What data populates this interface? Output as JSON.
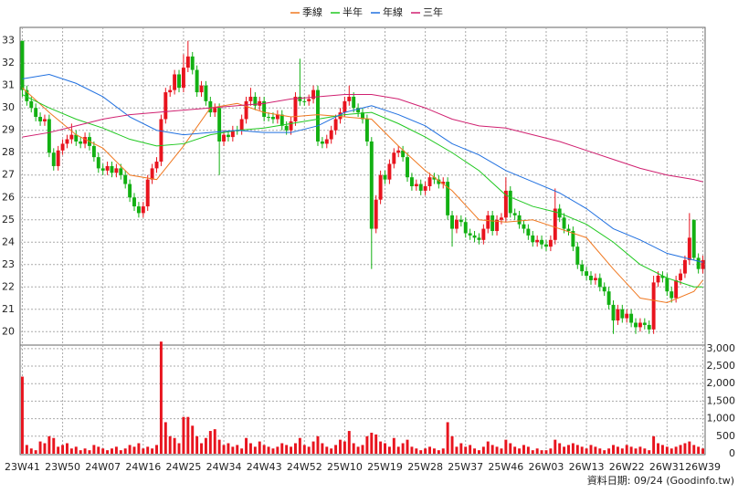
{
  "chart_data": {
    "type": "candlestick",
    "categories": [
      "23W41",
      null,
      null,
      null,
      null,
      null,
      null,
      null,
      null,
      "23W50",
      null,
      null,
      null,
      null,
      null,
      null,
      null,
      null,
      "24W07",
      null,
      null,
      null,
      null,
      null,
      null,
      null,
      null,
      "24W16",
      null,
      null,
      null,
      null,
      null,
      null,
      null,
      null,
      "24W25",
      null,
      null,
      null,
      null,
      null,
      null,
      null,
      null,
      "24W34",
      null,
      null,
      null,
      null,
      null,
      null,
      null,
      null,
      "24W43",
      null,
      null,
      null,
      null,
      null,
      null,
      null,
      null,
      "24W52",
      null,
      null,
      null,
      null,
      null,
      null,
      null,
      null,
      "25W10",
      null,
      null,
      null,
      null,
      null,
      null,
      null,
      null,
      "25W19",
      null,
      null,
      null,
      null,
      null,
      null,
      null,
      null,
      "25W28",
      null,
      null,
      null,
      null,
      null,
      null,
      null,
      null,
      "25W37",
      null,
      null,
      null,
      null,
      null,
      null,
      null,
      null,
      "25W46",
      null,
      null,
      null,
      null,
      null,
      null,
      null,
      null,
      "26W03",
      null,
      null,
      null,
      null,
      null,
      null,
      null,
      null,
      "26W13",
      null,
      null,
      null,
      null,
      null,
      null,
      null,
      null,
      "26W22",
      null,
      null,
      null,
      null,
      null,
      null,
      null,
      null,
      "26W31",
      null,
      null,
      null,
      null,
      null,
      null,
      null,
      "26W39"
    ],
    "open": [
      33.0,
      30.8,
      30.3,
      30.0,
      29.6,
      29.4,
      29.5,
      28.0,
      27.4,
      28.1,
      28.4,
      28.6,
      28.8,
      28.5,
      28.4,
      28.7,
      28.3,
      27.8,
      27.3,
      27.2,
      27.4,
      27.1,
      27.3,
      27.0,
      26.6,
      26.0,
      25.6,
      25.3,
      25.6,
      26.8,
      27.3,
      27.6,
      29.5,
      30.7,
      30.8,
      31.5,
      30.9,
      31.8,
      32.3,
      31.7,
      30.7,
      31.0,
      30.3,
      29.8,
      30.0,
      28.5,
      28.8,
      28.7,
      29.0,
      29.0,
      29.5,
      30.3,
      30.5,
      30.1,
      30.3,
      29.6,
      29.6,
      29.5,
      29.7,
      29.2,
      29.0,
      29.4,
      30.5,
      30.3,
      30.3,
      30.4,
      30.8,
      28.5,
      28.4,
      28.6,
      29.0,
      29.5,
      29.8,
      30.3,
      30.5,
      30.0,
      29.8,
      29.5,
      28.5,
      24.6,
      25.9,
      27.0,
      26.8,
      27.5,
      28.0,
      28.1,
      27.8,
      26.9,
      26.5,
      26.6,
      26.3,
      26.5,
      26.9,
      26.8,
      26.6,
      26.7,
      25.2,
      24.6,
      25.0,
      24.9,
      24.4,
      24.3,
      24.2,
      24.1,
      24.6,
      25.2,
      24.5,
      25.0,
      25.1,
      26.3,
      25.3,
      25.2,
      24.8,
      24.6,
      24.3,
      24.0,
      24.1,
      23.9,
      23.8,
      24.1,
      25.5,
      25.1,
      24.6,
      24.5,
      23.8,
      23.0,
      22.7,
      22.5,
      22.3,
      22.4,
      22.0,
      21.8,
      21.2,
      20.5,
      21.0,
      20.6,
      20.8,
      20.4,
      20.2,
      20.4,
      20.3,
      20.1,
      22.2,
      22.5,
      22.4,
      21.8,
      21.5,
      22.3,
      22.6,
      23.2,
      25.0,
      23.3,
      22.8
    ],
    "high": [
      33.0,
      31.0,
      30.5,
      30.2,
      29.8,
      29.7,
      29.7,
      28.2,
      28.3,
      28.6,
      28.8,
      29.3,
      29.0,
      28.7,
      28.9,
      28.9,
      28.5,
      28.0,
      27.5,
      27.6,
      27.6,
      27.5,
      27.5,
      27.2,
      26.8,
      26.2,
      25.8,
      25.8,
      27.0,
      27.5,
      27.8,
      29.7,
      30.9,
      31.0,
      31.7,
      31.7,
      32.4,
      33.0,
      32.5,
      31.9,
      31.2,
      31.2,
      30.5,
      30.2,
      30.2,
      29.0,
      29.0,
      29.2,
      29.2,
      29.7,
      30.5,
      30.9,
      30.7,
      30.5,
      30.5,
      29.8,
      29.8,
      29.9,
      29.9,
      29.4,
      29.6,
      30.7,
      32.2,
      30.5,
      30.6,
      31.0,
      31.0,
      28.7,
      28.8,
      29.2,
      29.7,
      30.0,
      30.5,
      31.0,
      30.7,
      30.2,
      30.0,
      29.7,
      28.7,
      26.1,
      27.2,
      27.2,
      27.7,
      28.2,
      28.3,
      28.3,
      28.0,
      27.1,
      26.8,
      26.8,
      26.7,
      27.1,
      27.1,
      27.0,
      26.9,
      26.9,
      25.4,
      25.2,
      25.2,
      25.1,
      24.6,
      24.5,
      24.4,
      24.8,
      25.4,
      25.4,
      25.2,
      25.3,
      26.9,
      26.5,
      25.5,
      25.4,
      25.0,
      24.8,
      24.5,
      24.3,
      24.3,
      24.1,
      24.3,
      26.4,
      25.7,
      25.3,
      24.8,
      24.7,
      24.0,
      23.2,
      22.9,
      22.7,
      22.6,
      22.6,
      22.2,
      22.0,
      21.4,
      21.2,
      21.2,
      21.0,
      21.0,
      20.6,
      20.6,
      20.6,
      20.5,
      22.5,
      22.7,
      22.7,
      22.6,
      22.0,
      22.5,
      22.8,
      23.4,
      25.3,
      25.0,
      23.5,
      23.4
    ],
    "low": [
      30.5,
      30.1,
      29.8,
      29.4,
      29.2,
      29.2,
      27.8,
      27.2,
      27.2,
      27.9,
      28.2,
      28.4,
      28.3,
      28.2,
      28.2,
      28.1,
      27.6,
      27.1,
      27.0,
      27.0,
      26.9,
      26.9,
      26.8,
      26.4,
      25.8,
      25.4,
      25.1,
      25.1,
      25.4,
      26.6,
      27.1,
      27.4,
      29.3,
      30.5,
      30.6,
      30.7,
      30.7,
      31.6,
      31.5,
      30.5,
      30.5,
      30.1,
      29.6,
      29.6,
      27.0,
      28.3,
      28.5,
      28.5,
      28.8,
      28.8,
      29.3,
      30.1,
      29.9,
      29.9,
      29.4,
      29.4,
      29.3,
      29.3,
      29.0,
      28.8,
      28.8,
      29.2,
      30.1,
      30.1,
      30.1,
      30.2,
      28.3,
      28.2,
      28.2,
      28.4,
      28.8,
      29.3,
      29.6,
      30.1,
      29.8,
      29.6,
      29.3,
      28.3,
      22.8,
      24.4,
      25.7,
      26.6,
      26.6,
      27.3,
      27.8,
      27.6,
      26.7,
      26.3,
      26.3,
      26.1,
      26.1,
      26.3,
      26.6,
      26.4,
      26.4,
      25.0,
      23.8,
      24.4,
      24.7,
      24.2,
      24.1,
      24.0,
      23.9,
      23.9,
      24.4,
      24.3,
      24.3,
      24.8,
      24.9,
      25.1,
      25.0,
      24.6,
      24.4,
      24.1,
      23.8,
      23.8,
      23.7,
      23.6,
      23.6,
      23.9,
      24.9,
      24.4,
      24.3,
      23.6,
      22.8,
      22.5,
      22.3,
      22.1,
      22.1,
      21.8,
      21.6,
      21.0,
      19.9,
      20.3,
      20.4,
      20.4,
      20.2,
      19.9,
      20.0,
      20.1,
      19.9,
      19.9,
      22.0,
      22.2,
      21.6,
      21.3,
      21.3,
      22.1,
      22.4,
      23.0,
      23.2,
      22.6,
      22.6
    ],
    "close": [
      30.8,
      30.3,
      30.0,
      29.6,
      29.4,
      29.5,
      28.0,
      27.4,
      28.1,
      28.4,
      28.6,
      28.8,
      28.5,
      28.4,
      28.7,
      28.3,
      27.8,
      27.3,
      27.2,
      27.4,
      27.1,
      27.3,
      27.0,
      26.6,
      26.0,
      25.6,
      25.3,
      25.6,
      26.8,
      27.3,
      27.6,
      29.5,
      30.7,
      30.8,
      31.5,
      30.9,
      31.8,
      32.3,
      31.7,
      30.7,
      31.0,
      30.3,
      29.8,
      30.0,
      28.5,
      28.8,
      28.7,
      29.0,
      29.0,
      29.5,
      30.3,
      30.5,
      30.1,
      30.3,
      29.6,
      29.6,
      29.5,
      29.7,
      29.2,
      29.0,
      29.4,
      30.5,
      30.3,
      30.3,
      30.4,
      30.8,
      28.5,
      28.4,
      28.6,
      29.0,
      29.5,
      29.8,
      30.3,
      30.5,
      30.0,
      29.8,
      29.5,
      28.5,
      24.6,
      25.9,
      27.0,
      26.8,
      27.5,
      28.0,
      28.1,
      27.8,
      26.9,
      26.5,
      26.6,
      26.3,
      26.5,
      26.9,
      26.8,
      26.6,
      26.7,
      25.2,
      24.6,
      25.0,
      24.9,
      24.4,
      24.3,
      24.2,
      24.1,
      24.6,
      25.2,
      24.5,
      25.0,
      25.1,
      26.3,
      25.3,
      25.2,
      24.8,
      24.6,
      24.3,
      24.0,
      24.1,
      23.9,
      23.8,
      24.1,
      25.5,
      25.1,
      24.6,
      24.5,
      23.8,
      23.0,
      22.7,
      22.5,
      22.3,
      22.4,
      22.0,
      21.8,
      21.2,
      20.5,
      21.0,
      20.6,
      20.8,
      20.4,
      20.2,
      20.4,
      20.3,
      20.1,
      22.2,
      22.5,
      22.4,
      21.8,
      21.5,
      22.3,
      22.6,
      23.2,
      24.2,
      23.3,
      22.8,
      23.2
    ],
    "up_color": "#e8141e",
    "down_color": "#12b012",
    "ylim": [
      19.4,
      33.6
    ],
    "yticks": [
      20,
      21,
      22,
      23,
      24,
      25,
      26,
      27,
      28,
      29,
      30,
      31,
      32,
      33
    ],
    "grid": true,
    "moving_averages": [
      {
        "name": "季線",
        "color": "#f07820",
        "x": [
          0,
          6,
          12,
          18,
          24,
          30,
          36,
          42,
          48,
          54,
          60,
          66,
          72,
          78,
          84,
          90,
          96,
          102,
          108,
          114,
          120,
          126,
          132,
          138,
          144,
          150,
          152
        ],
        "values": [
          30.9,
          29.8,
          28.8,
          28.2,
          27.0,
          26.8,
          28.3,
          30.0,
          30.2,
          29.8,
          29.6,
          29.7,
          29.6,
          29.5,
          28.3,
          27.2,
          26.3,
          25.0,
          24.9,
          25.0,
          24.6,
          24.2,
          22.8,
          21.5,
          21.3,
          21.8,
          22.3
        ]
      },
      {
        "name": "半年",
        "color": "#20c820",
        "x": [
          0,
          6,
          12,
          18,
          24,
          30,
          36,
          42,
          48,
          54,
          60,
          66,
          72,
          78,
          84,
          90,
          96,
          102,
          108,
          114,
          120,
          126,
          132,
          138,
          144,
          150,
          152
        ],
        "values": [
          30.6,
          30.0,
          29.5,
          29.1,
          28.6,
          28.3,
          28.4,
          28.8,
          29.0,
          29.1,
          29.3,
          29.5,
          29.7,
          29.8,
          29.3,
          28.7,
          28.0,
          27.2,
          26.1,
          25.6,
          25.3,
          24.8,
          24.0,
          23.0,
          22.4,
          22.0,
          22.0
        ]
      },
      {
        "name": "年線",
        "color": "#2070e0",
        "x": [
          0,
          6,
          12,
          18,
          24,
          30,
          36,
          42,
          48,
          54,
          60,
          66,
          72,
          78,
          84,
          90,
          96,
          102,
          108,
          114,
          120,
          126,
          132,
          138,
          144,
          150,
          152
        ],
        "values": [
          31.3,
          31.5,
          31.1,
          30.5,
          29.6,
          29.0,
          28.8,
          28.9,
          29.0,
          28.9,
          28.9,
          29.2,
          29.8,
          30.1,
          29.7,
          29.2,
          28.4,
          27.9,
          27.2,
          26.7,
          26.2,
          25.5,
          24.6,
          24.1,
          23.5,
          23.2,
          23.1
        ]
      },
      {
        "name": "三年",
        "color": "#d02070",
        "x": [
          0,
          6,
          12,
          18,
          24,
          30,
          36,
          42,
          48,
          54,
          60,
          66,
          72,
          78,
          84,
          90,
          96,
          102,
          108,
          114,
          120,
          126,
          132,
          138,
          144,
          150,
          152
        ],
        "values": [
          28.7,
          28.9,
          29.2,
          29.5,
          29.7,
          29.8,
          29.9,
          30.0,
          30.1,
          30.2,
          30.4,
          30.5,
          30.6,
          30.6,
          30.4,
          30.0,
          29.5,
          29.2,
          29.1,
          28.8,
          28.5,
          28.1,
          27.7,
          27.3,
          27.0,
          26.8,
          26.7
        ]
      }
    ],
    "volume": {
      "color": "#e8141e",
      "values": [
        2200,
        250,
        150,
        100,
        350,
        300,
        500,
        450,
        200,
        250,
        300,
        150,
        200,
        100,
        150,
        100,
        250,
        200,
        150,
        100,
        150,
        200,
        100,
        150,
        250,
        200,
        300,
        150,
        200,
        150,
        250,
        3200,
        900,
        500,
        450,
        300,
        1050,
        1050,
        800,
        500,
        300,
        450,
        650,
        700,
        400,
        250,
        300,
        200,
        250,
        150,
        450,
        300,
        200,
        350,
        250,
        200,
        150,
        200,
        300,
        250,
        200,
        300,
        450,
        250,
        200,
        350,
        500,
        300,
        200,
        150,
        250,
        400,
        350,
        650,
        300,
        200,
        250,
        500,
        600,
        550,
        350,
        300,
        200,
        450,
        200,
        300,
        400,
        200,
        150,
        100,
        150,
        200,
        150,
        100,
        150,
        900,
        500,
        200,
        300,
        200,
        250,
        150,
        100,
        200,
        350,
        250,
        200,
        150,
        400,
        300,
        200,
        150,
        250,
        200,
        100,
        150,
        100,
        100,
        150,
        400,
        300,
        200,
        250,
        300,
        250,
        200,
        150,
        250,
        200,
        150,
        100,
        150,
        250,
        200,
        150,
        250,
        200,
        150,
        200,
        150,
        100,
        500,
        300,
        250,
        200,
        150,
        200,
        250,
        300,
        350,
        250,
        200,
        150
      ],
      "ylim": [
        0,
        3100
      ],
      "yticks": [
        0,
        500,
        {
          "value": 1000,
          "label": "1,000"
        },
        {
          "value": 1500,
          "label": "1,500"
        },
        {
          "value": 2000,
          "label": "2,000"
        },
        {
          "value": 2500,
          "label": "2,500"
        },
        {
          "value": 3000,
          "label": "3,000"
        }
      ]
    },
    "footer": "資料日期: 09/24  (Goodinfo.tw)"
  }
}
